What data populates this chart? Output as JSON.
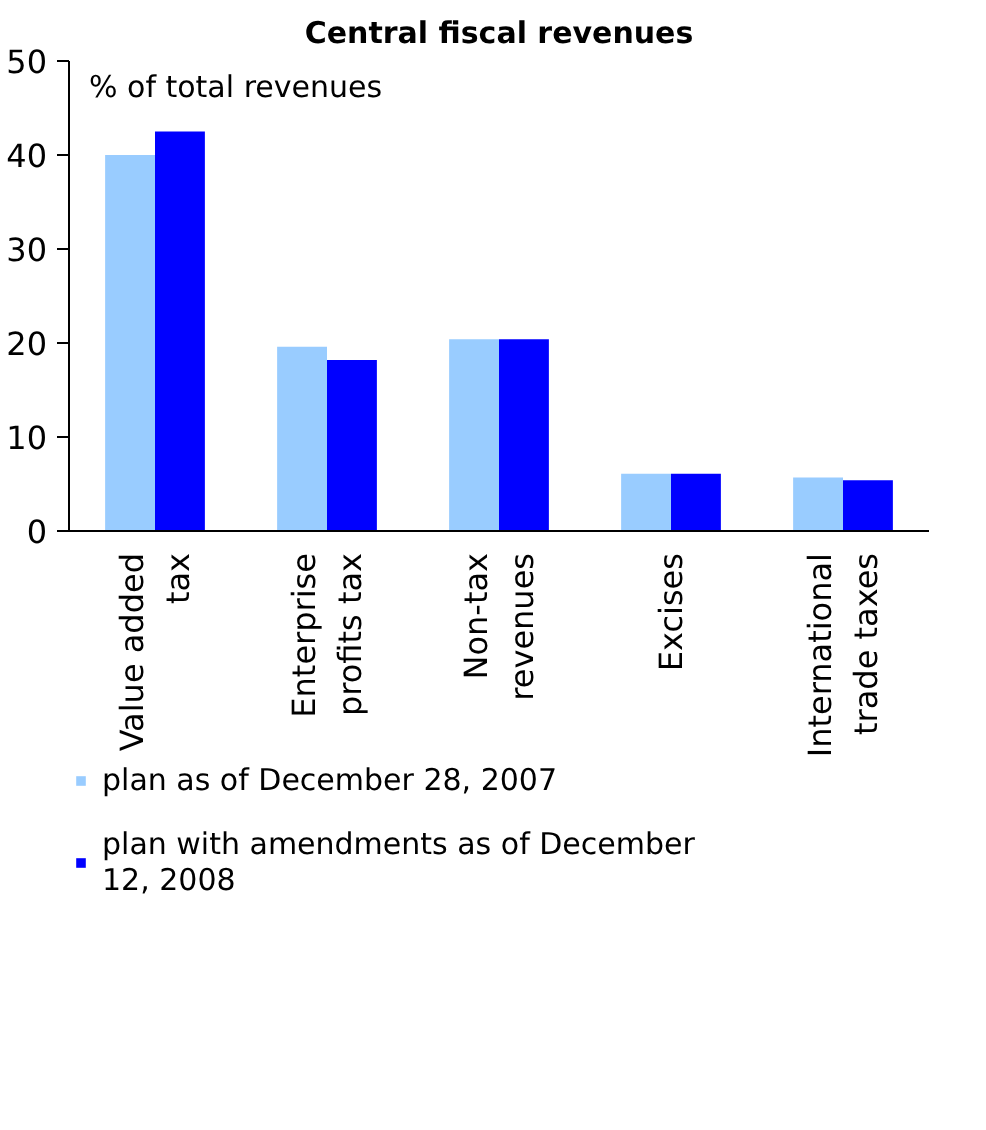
{
  "chart_data": {
    "type": "bar",
    "title": "Central fiscal revenues",
    "annotations": [
      "% of total revenues"
    ],
    "categories": [
      "Value added tax",
      "Enterprise profits tax",
      "Non-tax revenues",
      "Excises",
      "International trade taxes"
    ],
    "series": [
      {
        "name": "plan as of December 28, 2007",
        "color": "#99ccff",
        "values": [
          40.0,
          19.6,
          20.4,
          6.1,
          5.7
        ]
      },
      {
        "name": "plan with amendments as of December 12, 2008",
        "color": "#0000ff",
        "values": [
          42.5,
          18.2,
          20.4,
          6.1,
          5.4
        ]
      }
    ],
    "ylim": [
      0,
      50
    ],
    "yticks": [
      0,
      10,
      20,
      30,
      40,
      50
    ],
    "grid": false,
    "legend": "bottom"
  }
}
